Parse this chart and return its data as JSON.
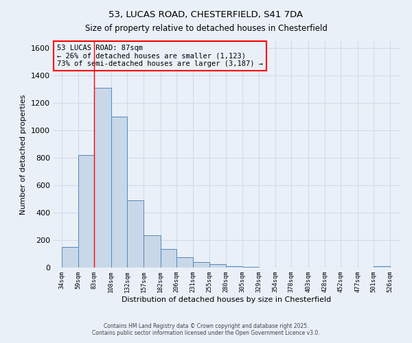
{
  "title_line1": "53, LUCAS ROAD, CHESTERFIELD, S41 7DA",
  "title_line2": "Size of property relative to detached houses in Chesterfield",
  "xlabel": "Distribution of detached houses by size in Chesterfield",
  "ylabel": "Number of detached properties",
  "bar_left_edges": [
    34,
    59,
    83,
    108,
    132,
    157,
    182,
    206,
    231,
    255,
    280,
    305,
    329,
    354,
    378,
    403,
    428,
    452,
    477,
    501
  ],
  "bar_widths": [
    25,
    24,
    25,
    24,
    25,
    25,
    24,
    25,
    24,
    25,
    25,
    24,
    25,
    24,
    25,
    25,
    24,
    25,
    24,
    25
  ],
  "bar_heights": [
    150,
    820,
    1310,
    1100,
    490,
    235,
    135,
    75,
    40,
    25,
    10,
    5,
    2,
    1,
    0,
    0,
    0,
    0,
    0,
    10
  ],
  "bar_color": "#c8d8e8",
  "bar_edge_color": "#5588bb",
  "xtick_labels": [
    "34sqm",
    "59sqm",
    "83sqm",
    "108sqm",
    "132sqm",
    "157sqm",
    "182sqm",
    "206sqm",
    "231sqm",
    "255sqm",
    "280sqm",
    "305sqm",
    "329sqm",
    "354sqm",
    "378sqm",
    "403sqm",
    "428sqm",
    "452sqm",
    "477sqm",
    "501sqm",
    "526sqm"
  ],
  "xtick_positions": [
    34,
    59,
    83,
    108,
    132,
    157,
    182,
    206,
    231,
    255,
    280,
    305,
    329,
    354,
    378,
    403,
    428,
    452,
    477,
    501,
    526
  ],
  "ylim": [
    0,
    1650
  ],
  "xlim": [
    22,
    540
  ],
  "yticks": [
    0,
    200,
    400,
    600,
    800,
    1000,
    1200,
    1400,
    1600
  ],
  "property_line_x": 83,
  "annotation_text": "53 LUCAS ROAD: 87sqm\n← 26% of detached houses are smaller (1,123)\n73% of semi-detached houses are larger (3,187) →",
  "bg_color": "#eaf0f8",
  "grid_color": "#d0dcea",
  "footer_line1": "Contains HM Land Registry data © Crown copyright and database right 2025.",
  "footer_line2": "Contains public sector information licensed under the Open Government Licence v3.0."
}
